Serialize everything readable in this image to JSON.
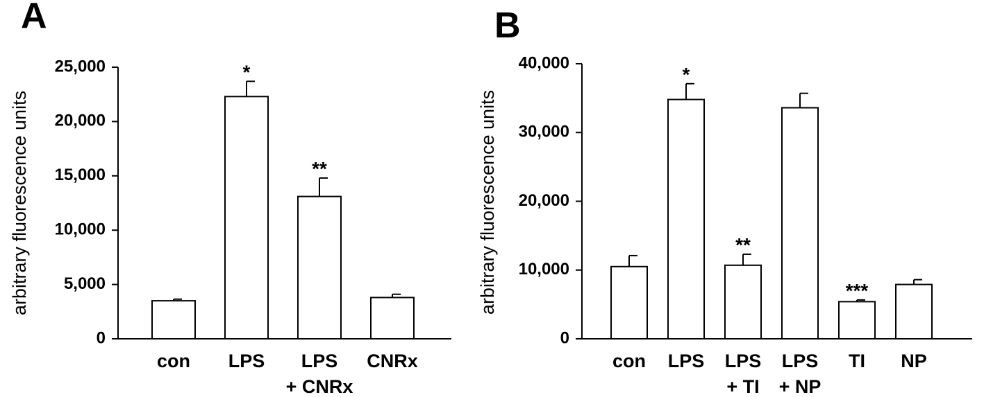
{
  "chart_data": [
    {
      "type": "bar",
      "panel_letter": "A",
      "ylabel": "arbitrary fluorescence units",
      "ylim": [
        0,
        25000
      ],
      "yticks": [
        0,
        5000,
        10000,
        15000,
        20000,
        25000
      ],
      "ytick_labels": [
        "0",
        "5,000",
        "10,000",
        "15,000",
        "20,000",
        "25,000"
      ],
      "categories": [
        {
          "line1": "con",
          "line2": ""
        },
        {
          "line1": "LPS",
          "line2": ""
        },
        {
          "line1": "LPS",
          "line2": "+ CNRx"
        },
        {
          "line1": "CNRx",
          "line2": ""
        }
      ],
      "values": [
        3500,
        22300,
        13100,
        3800
      ],
      "errors": [
        150,
        1400,
        1700,
        300
      ],
      "significance": [
        "",
        "*",
        "**",
        ""
      ]
    },
    {
      "type": "bar",
      "panel_letter": "B",
      "ylabel": "arbitrary fluorescence units",
      "ylim": [
        0,
        40000
      ],
      "yticks": [
        0,
        10000,
        20000,
        30000,
        40000
      ],
      "ytick_labels": [
        "0",
        "10,000",
        "20,000",
        "30,000",
        "40,000"
      ],
      "categories": [
        {
          "line1": "con",
          "line2": ""
        },
        {
          "line1": "LPS",
          "line2": ""
        },
        {
          "line1": "LPS",
          "line2": "+ TI"
        },
        {
          "line1": "LPS",
          "line2": "+ NP"
        },
        {
          "line1": "TI",
          "line2": ""
        },
        {
          "line1": "NP",
          "line2": ""
        }
      ],
      "values": [
        10500,
        34800,
        10700,
        33600,
        5400,
        7900
      ],
      "errors": [
        1600,
        2300,
        1600,
        2100,
        250,
        700
      ],
      "significance": [
        "",
        "*",
        "**",
        "",
        "***",
        ""
      ]
    }
  ]
}
